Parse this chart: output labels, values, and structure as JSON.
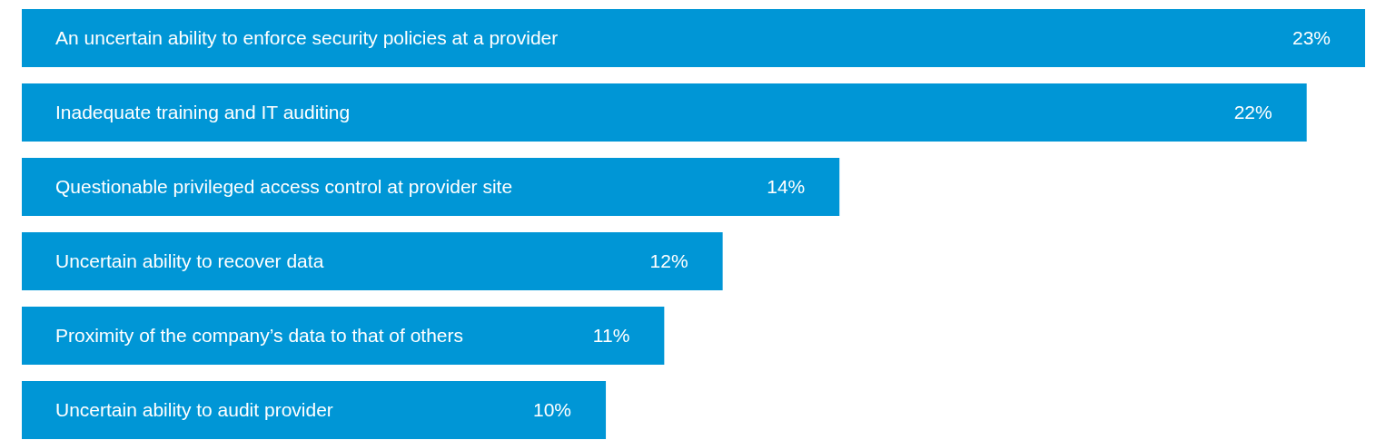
{
  "chart_data": {
    "type": "bar",
    "orientation": "horizontal",
    "categories": [
      "An uncertain ability to enforce security policies at a provider",
      "Inadequate training and IT auditing",
      "Questionable privileged access control at provider site",
      "Uncertain ability to recover data",
      "Proximity of the company’s data to that of others",
      "Uncertain ability to audit provider"
    ],
    "values": [
      23,
      22,
      14,
      12,
      11,
      10
    ],
    "value_labels": [
      "23%",
      "22%",
      "14%",
      "12%",
      "11%",
      "10%"
    ],
    "color": "#0096d6"
  }
}
